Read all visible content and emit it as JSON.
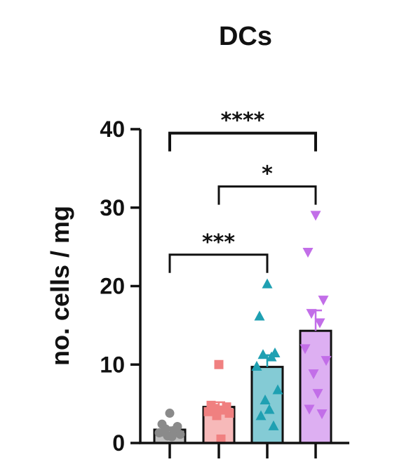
{
  "chart_data": {
    "type": "bar",
    "title": "DCs",
    "xlabel": "",
    "ylabel": "no. cells / mg",
    "ylim": [
      0,
      40
    ],
    "yticks": [
      0,
      10,
      20,
      30,
      40
    ],
    "grid": false,
    "categories": [
      "",
      "",
      "",
      ""
    ],
    "series": [
      {
        "color": "#8a8a8a",
        "marker": "circle",
        "mean": 1.7,
        "sem": 0.3,
        "points": [
          3.8,
          2.4,
          2.1,
          1.8,
          1.6,
          1.3,
          1.1,
          0.9,
          0.8,
          1.4
        ]
      },
      {
        "color": "#f08080",
        "marker": "square",
        "mean": 4.6,
        "sem": 0.6,
        "points": [
          10.0,
          4.8,
          4.6,
          4.4,
          4.2,
          4.0,
          3.8,
          3.5,
          0.5
        ]
      },
      {
        "color": "#1fa0b2",
        "marker": "triangle-up",
        "mean": 9.7,
        "sem": 1.5,
        "points": [
          20.3,
          16.2,
          11.5,
          11.3,
          11.0,
          9.8,
          6.8,
          5.5,
          4.3,
          3.5,
          2.2
        ]
      },
      {
        "color": "#c26ee8",
        "marker": "triangle-down",
        "mean": 14.3,
        "sem": 2.6,
        "points": [
          29.0,
          24.3,
          18.2,
          16.5,
          15.3,
          12.0,
          10.5,
          8.8,
          6.3,
          4.3,
          3.7
        ]
      }
    ],
    "comparisons": [
      {
        "from": 0,
        "to": 3,
        "label": "****",
        "y": 39.5
      },
      {
        "from": 1,
        "to": 3,
        "label": "*",
        "y": 32.7
      },
      {
        "from": 0,
        "to": 2,
        "label": "***",
        "y": 24.0
      }
    ]
  }
}
